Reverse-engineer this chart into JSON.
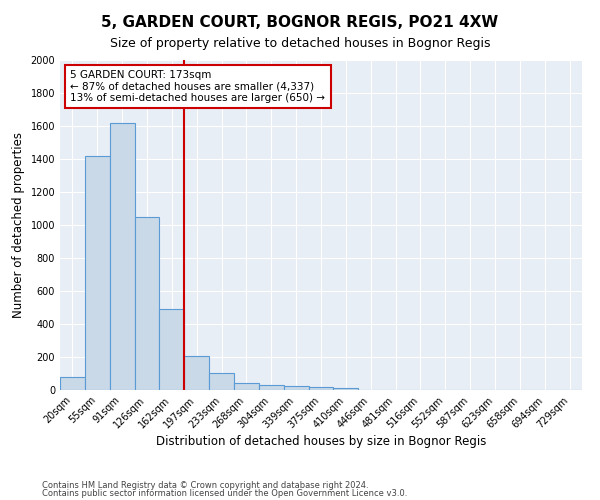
{
  "title": "5, GARDEN COURT, BOGNOR REGIS, PO21 4XW",
  "subtitle": "Size of property relative to detached houses in Bognor Regis",
  "xlabel": "Distribution of detached houses by size in Bognor Regis",
  "ylabel": "Number of detached properties",
  "footnote1": "Contains HM Land Registry data © Crown copyright and database right 2024.",
  "footnote2": "Contains public sector information licensed under the Open Government Licence v3.0.",
  "bar_labels": [
    "20sqm",
    "55sqm",
    "91sqm",
    "126sqm",
    "162sqm",
    "197sqm",
    "233sqm",
    "268sqm",
    "304sqm",
    "339sqm",
    "375sqm",
    "410sqm",
    "446sqm",
    "481sqm",
    "516sqm",
    "552sqm",
    "587sqm",
    "623sqm",
    "658sqm",
    "694sqm",
    "729sqm"
  ],
  "bar_values": [
    80,
    1420,
    1620,
    1050,
    490,
    205,
    105,
    42,
    28,
    22,
    18,
    15,
    0,
    0,
    0,
    0,
    0,
    0,
    0,
    0,
    0
  ],
  "bar_color": "#c9d9e8",
  "bar_edge_color": "#5b9bd5",
  "vline_x": 4.5,
  "vline_color": "#cc0000",
  "annotation_text": "5 GARDEN COURT: 173sqm\n← 87% of detached houses are smaller (4,337)\n13% of semi-detached houses are larger (650) →",
  "annotation_box_color": "#ffffff",
  "annotation_box_edge": "#cc0000",
  "ylim": [
    0,
    2000
  ],
  "yticks": [
    0,
    200,
    400,
    600,
    800,
    1000,
    1200,
    1400,
    1600,
    1800,
    2000
  ],
  "bg_color": "#e8eef5",
  "grid_color": "#ffffff",
  "title_fontsize": 11,
  "subtitle_fontsize": 9,
  "xlabel_fontsize": 8.5,
  "ylabel_fontsize": 8.5,
  "tick_fontsize": 7,
  "annotation_fontsize": 7.5,
  "footnote_fontsize": 6.0
}
